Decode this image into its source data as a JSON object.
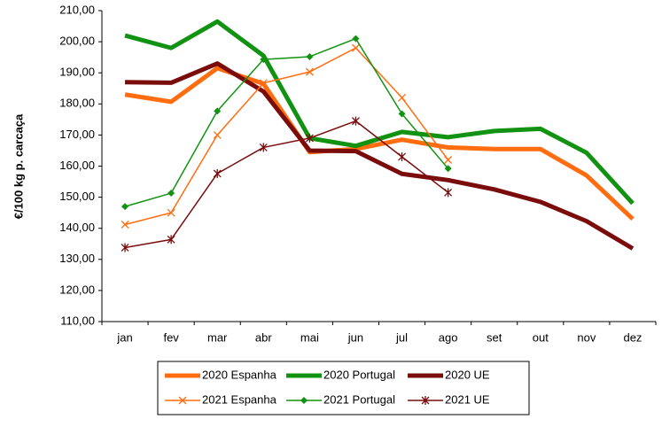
{
  "chart_data": {
    "type": "line",
    "y_label": "€/100 kg p. carcaça",
    "categories": [
      "jan",
      "fev",
      "mar",
      "abr",
      "mai",
      "jun",
      "jul",
      "ago",
      "set",
      "out",
      "nov",
      "dez"
    ],
    "ylim": [
      110,
      210
    ],
    "yticks": [
      {
        "value": 110,
        "label": "110,00"
      },
      {
        "value": 120,
        "label": "120,00"
      },
      {
        "value": 130,
        "label": "130,00"
      },
      {
        "value": 140,
        "label": "140,00"
      },
      {
        "value": 150,
        "label": "150,00"
      },
      {
        "value": 160,
        "label": "160,00"
      },
      {
        "value": 170,
        "label": "170,00"
      },
      {
        "value": 180,
        "label": "180,00"
      },
      {
        "value": 190,
        "label": "190,00"
      },
      {
        "value": 200,
        "label": "200,00"
      },
      {
        "value": 210,
        "label": "210,00"
      }
    ],
    "grid": false,
    "legend": "bottom",
    "series": [
      {
        "name": "2020 Espanha",
        "color": "#ff6d10",
        "values": [
          183,
          180.7,
          191.5,
          186.5,
          164.5,
          165.5,
          168.5,
          166,
          165.5,
          165.5,
          157,
          143
        ]
      },
      {
        "name": "2020 Portugal",
        "color": "#129212",
        "values": [
          202,
          198,
          206.5,
          195.5,
          169,
          166.5,
          171,
          169.3,
          171.3,
          172,
          164.3,
          148
        ]
      },
      {
        "name": "2020 UE",
        "color": "#7a0c0c",
        "values": [
          187,
          186.8,
          193,
          184,
          165,
          164.8,
          157.5,
          155.5,
          152.5,
          148.5,
          142.3,
          133.5
        ]
      },
      {
        "name": "2021 Espanha",
        "color": "#ff6d10",
        "marker": "x",
        "values": [
          141.2,
          145,
          170,
          186.7,
          190.3,
          198,
          182,
          162,
          null,
          null,
          null,
          null
        ]
      },
      {
        "name": "2021 Portugal",
        "color": "#129212",
        "marker": "diamond",
        "values": [
          147,
          151.3,
          177.7,
          194.3,
          195.2,
          201,
          176.8,
          159.2,
          null,
          null,
          null,
          null
        ]
      },
      {
        "name": "2021 UE",
        "color": "#7a0c0c",
        "marker": "star",
        "values": [
          133.8,
          136.4,
          157.6,
          166,
          169,
          174.5,
          163,
          151.5,
          null,
          null,
          null,
          null
        ]
      }
    ]
  }
}
